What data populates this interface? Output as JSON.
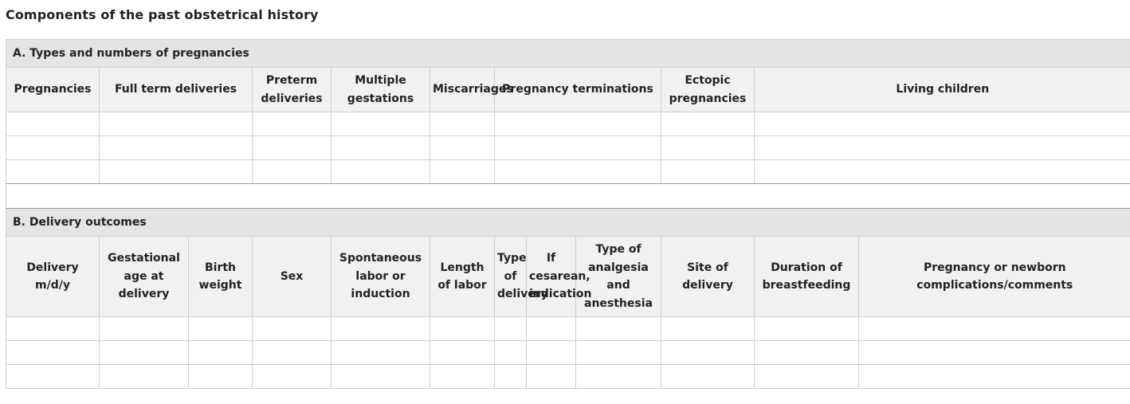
{
  "title": "Components of the past obstetrical history",
  "sectionA": {
    "heading": "A. Types and numbers of pregnancies",
    "columns": [
      "Pregnancies",
      "Full term deliveries",
      "Preterm deliveries",
      "Multiple gestations",
      "Miscarriages",
      "Pregnancy terminations",
      "Ectopic pregnancies",
      "Living children"
    ]
  },
  "sectionB": {
    "heading": "B. Delivery outcomes",
    "columns": [
      "Delivery m/d/y",
      "Gestational age at delivery",
      "Birth weight",
      "Sex",
      "Spontaneous labor or induction",
      "Length of labor",
      "Type of delivery",
      "If cesarean, indication",
      "Type of analgesia and anesthesia",
      "Site of delivery",
      "Duration of breastfeeding",
      "Pregnancy or newborn complications/comments"
    ]
  }
}
